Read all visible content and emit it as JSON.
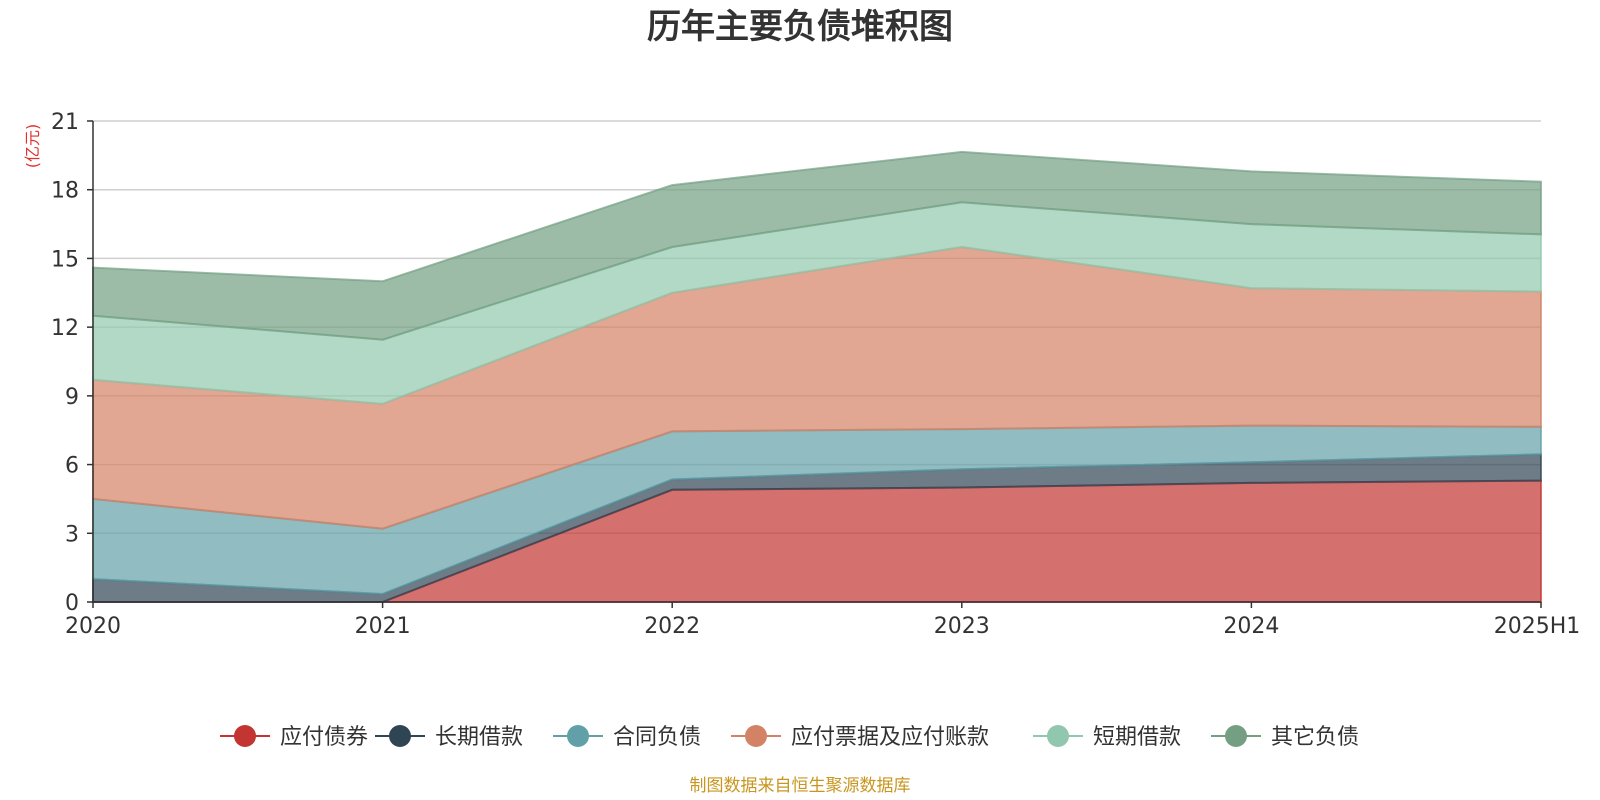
{
  "chart_data": {
    "type": "area",
    "stacked": true,
    "title": "历年主要负债堆积图",
    "unit_label": "(亿元)",
    "categories": [
      "2020",
      "2021",
      "2022",
      "2023",
      "2024",
      "2025H1"
    ],
    "ylim": [
      0,
      21
    ],
    "yticks": [
      "0",
      "3",
      "6",
      "9",
      "12",
      "15",
      "18",
      "21"
    ],
    "grid": true,
    "legend_position": "bottom",
    "series": [
      {
        "name": "应付债券",
        "color": "#c23531",
        "values": [
          0,
          0,
          4.9,
          5.0,
          5.2,
          5.3
        ]
      },
      {
        "name": "长期借款",
        "color": "#2f4554",
        "values": [
          1.0,
          0.35,
          0.45,
          0.8,
          0.9,
          1.15
        ]
      },
      {
        "name": "合同负债",
        "color": "#61a0a8",
        "values": [
          3.5,
          2.85,
          2.1,
          1.75,
          1.6,
          1.2
        ]
      },
      {
        "name": "应付票据及应付账款",
        "color": "#d48265",
        "values": [
          5.2,
          5.45,
          6.05,
          7.95,
          6.0,
          5.9
        ]
      },
      {
        "name": "短期借款",
        "color": "#91c7ae",
        "values": [
          2.8,
          2.8,
          2.0,
          1.95,
          2.8,
          2.5
        ]
      },
      {
        "name": "其它负债",
        "color": "#749f83",
        "values": [
          2.1,
          2.55,
          2.7,
          2.2,
          2.3,
          2.3
        ]
      }
    ],
    "footer": "制图数据来自恒生聚源数据库"
  }
}
